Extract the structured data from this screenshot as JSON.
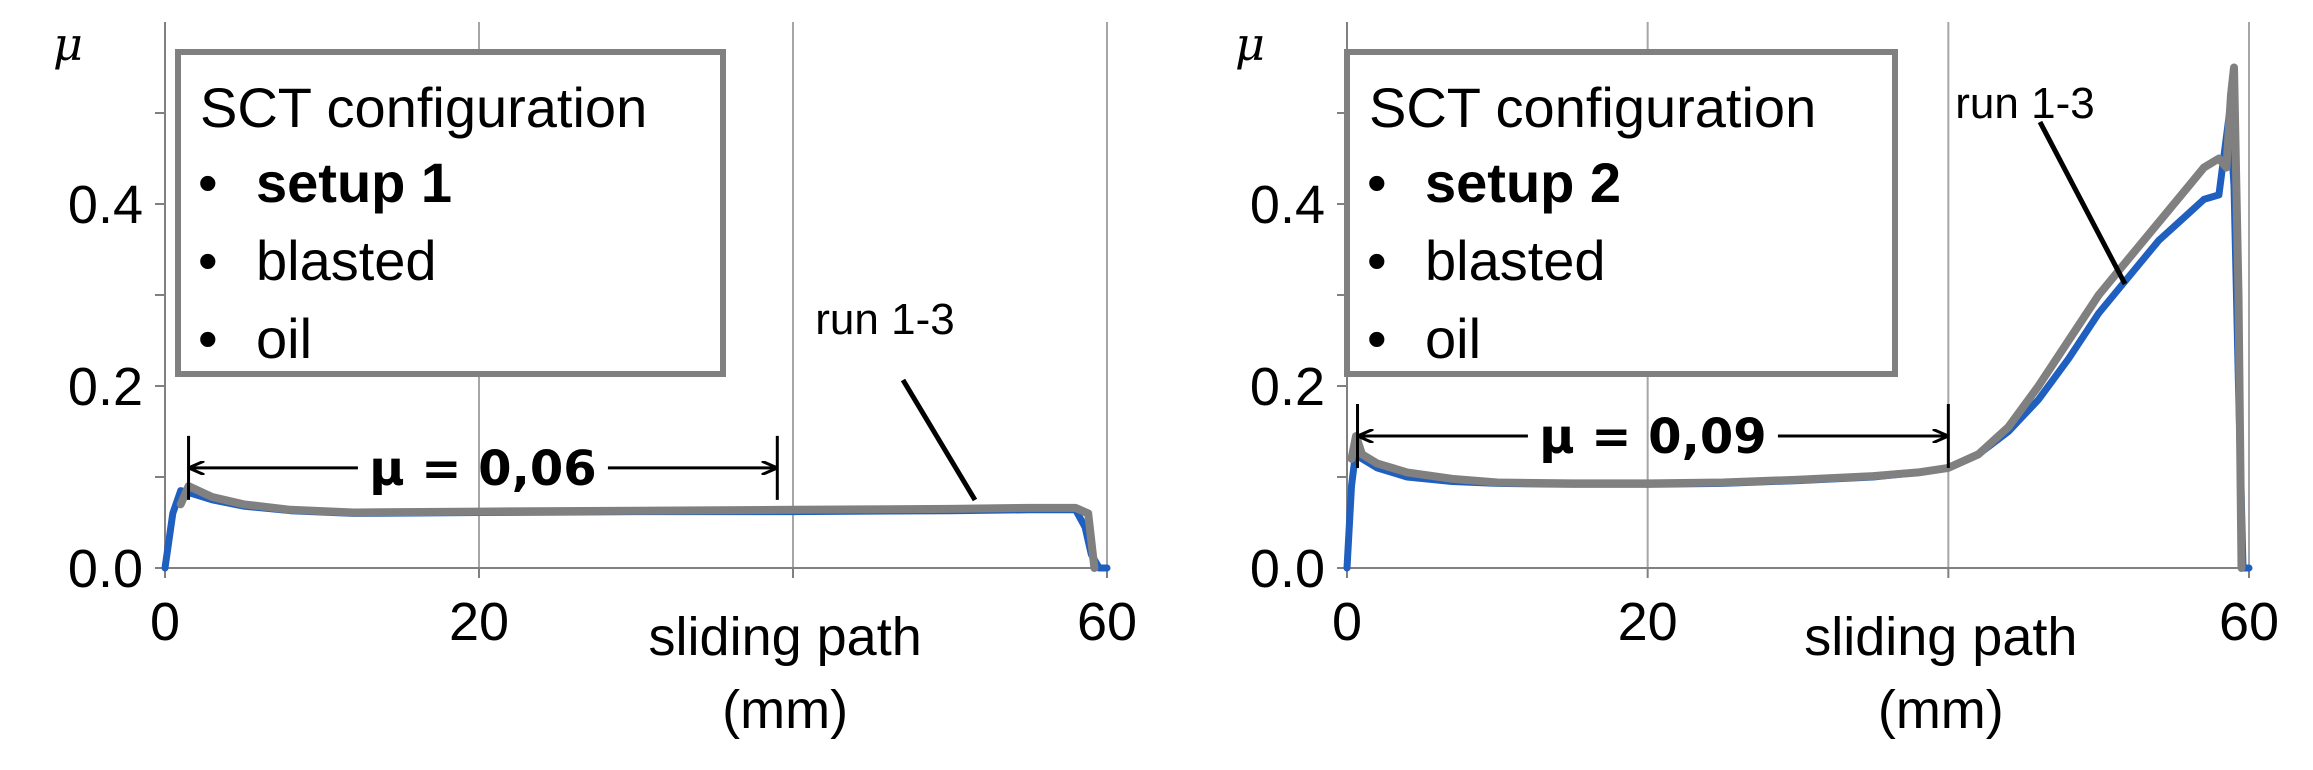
{
  "chart_data": [
    {
      "type": "line",
      "ylabel": "μ",
      "xlabel": [
        "sliding path",
        "(mm)"
      ],
      "xlim": [
        0,
        60
      ],
      "ylim": [
        0,
        0.6
      ],
      "xticks": [
        "0",
        "20",
        "60"
      ],
      "yticks": [
        "0.0",
        "0.2",
        "0.4"
      ],
      "grid": "vertical",
      "legend": {
        "placement": "top-left",
        "title": "SCT configuration",
        "items": [
          {
            "bullet": "•",
            "text": "setup 1",
            "bold": true
          },
          {
            "bullet": "•",
            "text": "blasted",
            "bold": false
          },
          {
            "bullet": "•",
            "text": "oil",
            "bold": false
          }
        ]
      },
      "annotation": {
        "text": "run 1-3",
        "x": 54.0,
        "y": 0.07
      },
      "mean_label": {
        "text": "μ = 0,06",
        "x_start": 1.5,
        "x_end": 39.0,
        "y": 0.11
      },
      "series": [
        {
          "color": "#1f5fbf",
          "x": [
            0,
            0.5,
            1.0,
            1.5,
            3,
            5,
            8,
            12,
            20,
            30,
            40,
            50,
            55,
            58,
            58.6,
            59.0,
            59.5,
            60
          ],
          "y": [
            0.0,
            0.06,
            0.085,
            0.083,
            0.075,
            0.068,
            0.063,
            0.06,
            0.061,
            0.062,
            0.062,
            0.063,
            0.064,
            0.064,
            0.045,
            0.015,
            0.0,
            0.0
          ]
        },
        {
          "color": "#808080",
          "x": [
            1.0,
            1.5,
            3,
            5,
            8,
            12,
            20,
            30,
            40,
            50,
            55,
            58,
            58.8,
            59.2
          ],
          "y": [
            0.07,
            0.09,
            0.078,
            0.07,
            0.064,
            0.061,
            0.062,
            0.063,
            0.064,
            0.065,
            0.066,
            0.066,
            0.06,
            0.0
          ]
        }
      ]
    },
    {
      "type": "line",
      "ylabel": "μ",
      "xlabel": [
        "sliding path",
        "(mm)"
      ],
      "xlim": [
        0,
        60
      ],
      "ylim": [
        0,
        0.6
      ],
      "xticks": [
        "0",
        "20",
        "60"
      ],
      "yticks": [
        "0.0",
        "0.2",
        "0.4"
      ],
      "grid": "vertical",
      "legend": {
        "placement": "top-left",
        "title": "SCT configuration",
        "items": [
          {
            "bullet": "•",
            "text": "setup 2",
            "bold": true
          },
          {
            "bullet": "•",
            "text": "blasted",
            "bold": false
          },
          {
            "bullet": "•",
            "text": "oil",
            "bold": false
          }
        ]
      },
      "annotation": {
        "text": "run 1-3",
        "x": 51.0,
        "y": 0.32
      },
      "mean_label": {
        "text": "μ = 0,09",
        "x_start": 0.7,
        "x_end": 40.0,
        "y": 0.145
      },
      "series": [
        {
          "color": "#1f5fbf",
          "x": [
            0,
            0.3,
            0.6,
            1,
            2,
            4,
            7,
            10,
            15,
            20,
            25,
            30,
            35,
            38,
            40,
            42,
            44,
            46,
            48,
            50,
            52,
            54,
            56,
            57,
            58,
            58.7,
            59.0,
            59.3,
            59.6,
            60
          ],
          "y": [
            0.0,
            0.09,
            0.13,
            0.12,
            0.11,
            0.1,
            0.095,
            0.093,
            0.092,
            0.092,
            0.093,
            0.096,
            0.1,
            0.105,
            0.11,
            0.125,
            0.15,
            0.185,
            0.23,
            0.28,
            0.32,
            0.36,
            0.39,
            0.405,
            0.41,
            0.5,
            0.42,
            0.2,
            0.0,
            0.0
          ]
        },
        {
          "color": "#808080",
          "x": [
            0.3,
            0.6,
            1,
            2,
            4,
            7,
            10,
            15,
            20,
            25,
            30,
            35,
            38,
            40,
            42,
            44,
            46,
            48,
            50,
            52,
            54,
            56,
            57,
            58,
            58.5,
            58.8,
            59.0,
            59.3,
            59.5
          ],
          "y": [
            0.12,
            0.145,
            0.125,
            0.115,
            0.105,
            0.098,
            0.094,
            0.093,
            0.093,
            0.094,
            0.097,
            0.101,
            0.105,
            0.11,
            0.125,
            0.155,
            0.2,
            0.25,
            0.3,
            0.34,
            0.38,
            0.42,
            0.44,
            0.45,
            0.44,
            0.52,
            0.55,
            0.3,
            0.0
          ]
        }
      ]
    }
  ]
}
